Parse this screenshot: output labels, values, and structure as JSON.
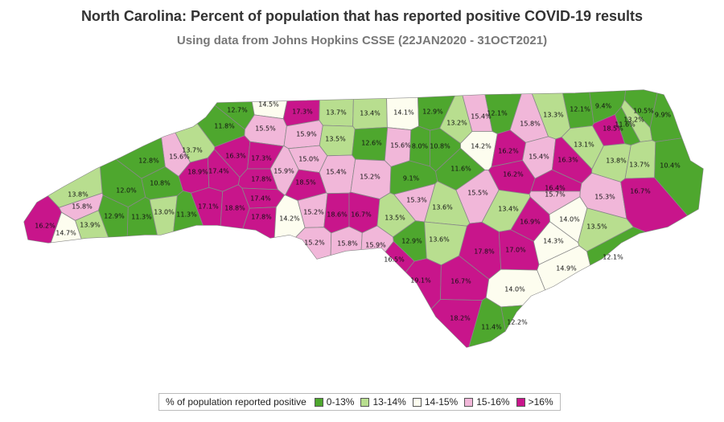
{
  "title": "North Carolina: Percent of population that has reported positive COVID-19 results",
  "subtitle": "Using data from Johns Hopkins CSSE (22JAN2020 - 31OCT2021)",
  "legend": {
    "title": "% of population reported positive",
    "items": [
      {
        "label": "0-13%",
        "color": "#4ea72e"
      },
      {
        "label": "13-14%",
        "color": "#b8de8f"
      },
      {
        "label": "14-15%",
        "color": "#fdfdef"
      },
      {
        "label": "15-16%",
        "color": "#f1b7d9"
      },
      {
        "label": ">16%",
        "color": "#c8158b"
      }
    ]
  },
  "counties": [
    {
      "value": 12.7
    },
    {
      "value": 14.5
    },
    {
      "value": 17.3
    },
    {
      "value": 13.7
    },
    {
      "value": 13.4
    },
    {
      "value": 14.1
    },
    {
      "value": 12.9
    },
    {
      "value": 13.2
    },
    {
      "value": 15.4
    },
    {
      "value": 12.1
    },
    {
      "value": 15.8
    },
    {
      "value": 13.3
    },
    {
      "value": 12.1
    },
    {
      "value": 9.4
    },
    {
      "value": 10.5
    },
    {
      "value": 13.2
    },
    {
      "value": 9.9
    },
    {
      "value": 11.6
    },
    {
      "value": 18.5
    },
    {
      "value": 11.8
    },
    {
      "value": 15.5
    },
    {
      "value": 15.9
    },
    {
      "value": 13.5
    },
    {
      "value": 12.6
    },
    {
      "value": 15.6
    },
    {
      "value": 8.0
    },
    {
      "value": 10.8
    },
    {
      "value": 14.2
    },
    {
      "value": 16.2
    },
    {
      "value": 15.4
    },
    {
      "value": 13.1
    },
    {
      "value": 16.3
    },
    {
      "value": 13.8
    },
    {
      "value": 13.7
    },
    {
      "value": 10.4
    },
    {
      "value": 15.6
    },
    {
      "value": 13.7
    },
    {
      "value": 16.3
    },
    {
      "value": 17.3
    },
    {
      "value": 15.0
    },
    {
      "value": 12.8
    },
    {
      "value": 18.9
    },
    {
      "value": 17.4
    },
    {
      "value": 17.8
    },
    {
      "value": 15.9
    },
    {
      "value": 15.4
    },
    {
      "value": 15.2
    },
    {
      "value": 9.1
    },
    {
      "value": 11.6
    },
    {
      "value": 16.2
    },
    {
      "value": 16.4
    },
    {
      "value": 15.7
    },
    {
      "value": 15.3
    },
    {
      "value": 16.7
    },
    {
      "value": 10.8
    },
    {
      "value": 12.0
    },
    {
      "value": 18.5
    },
    {
      "value": 15.5
    },
    {
      "value": 15.3
    },
    {
      "value": 13.8
    },
    {
      "value": 15.8
    },
    {
      "value": 12.9
    },
    {
      "value": 11.3
    },
    {
      "value": 13.0
    },
    {
      "value": 11.3
    },
    {
      "value": 17.1
    },
    {
      "value": 18.8
    },
    {
      "value": 17.4
    },
    {
      "value": 17.8
    },
    {
      "value": 14.2
    },
    {
      "value": 15.2
    },
    {
      "value": 18.6
    },
    {
      "value": 16.7
    },
    {
      "value": 13.5
    },
    {
      "value": 13.6
    },
    {
      "value": 13.4
    },
    {
      "value": 16.9
    },
    {
      "value": 14.0
    },
    {
      "value": 13.5
    },
    {
      "value": 16.2
    },
    {
      "value": 13.9
    },
    {
      "value": 14.7
    },
    {
      "value": 15.2
    },
    {
      "value": 15.8
    },
    {
      "value": 15.9
    },
    {
      "value": 12.9
    },
    {
      "value": 13.6
    },
    {
      "value": 17.8
    },
    {
      "value": 17.0
    },
    {
      "value": 14.3
    },
    {
      "value": 16.5
    },
    {
      "value": 14.9
    },
    {
      "value": 12.1
    },
    {
      "value": 19.1
    },
    {
      "value": 16.7
    },
    {
      "value": 14.0
    },
    {
      "value": 18.2
    },
    {
      "value": 12.2
    },
    {
      "value": 11.4
    }
  ]
}
